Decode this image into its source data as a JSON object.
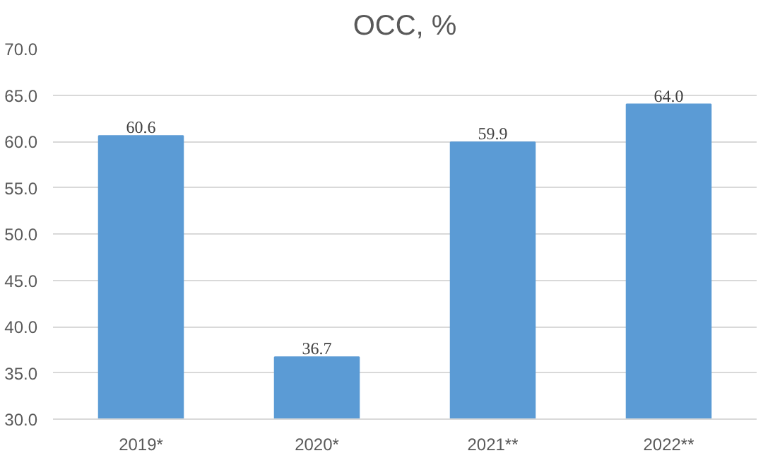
{
  "chart_data": {
    "type": "bar",
    "title": "OCC, %",
    "categories": [
      "2019*",
      "2020*",
      "2021**",
      "2022**"
    ],
    "values": [
      60.6,
      36.7,
      59.9,
      64.0
    ],
    "value_labels": [
      "60.6",
      "36.7",
      "59.9",
      "64.0"
    ],
    "color": "#5b9bd5",
    "ylim": [
      30,
      70
    ],
    "yticks": [
      {
        "value": 30,
        "label": "30.0"
      },
      {
        "value": 35,
        "label": "35.0"
      },
      {
        "value": 40,
        "label": "40.0"
      },
      {
        "value": 45,
        "label": "45.0"
      },
      {
        "value": 50,
        "label": "50.0"
      },
      {
        "value": 55,
        "label": "55.0"
      },
      {
        "value": 60,
        "label": "60.0"
      },
      {
        "value": 65,
        "label": "65.0"
      },
      {
        "value": 70,
        "label": "70.0"
      }
    ],
    "grid": "y"
  }
}
